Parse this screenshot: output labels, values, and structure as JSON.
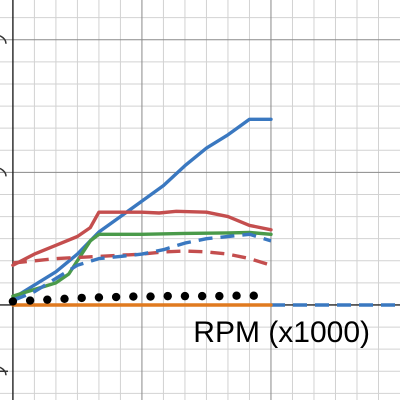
{
  "app": {
    "title": ""
  },
  "chart_data": {
    "type": "line",
    "title": "",
    "xlabel": "RPM (x1000)",
    "ylabel": "",
    "xlim": [
      -0.3,
      9.0
    ],
    "ylim": [
      -2.15,
      6.9
    ],
    "grid": true,
    "legend": "none",
    "series": [
      {
        "color": "#3a78c0",
        "style": "solid",
        "points": [
          [
            0,
            0.15
          ],
          [
            0.5,
            0.45
          ],
          [
            1.0,
            0.75
          ],
          [
            1.5,
            1.15
          ],
          [
            2.0,
            1.65
          ],
          [
            2.5,
            2.0
          ],
          [
            3.0,
            2.35
          ],
          [
            3.5,
            2.7
          ],
          [
            4.0,
            3.15
          ],
          [
            4.5,
            3.55
          ],
          [
            5.0,
            3.85
          ],
          [
            5.5,
            4.2
          ],
          [
            6.0,
            4.2
          ]
        ]
      },
      {
        "color": "#c44e4e",
        "style": "solid",
        "points": [
          [
            0,
            0.9
          ],
          [
            0.5,
            1.15
          ],
          [
            1.0,
            1.35
          ],
          [
            1.5,
            1.55
          ],
          [
            1.8,
            1.75
          ],
          [
            2.0,
            2.1
          ],
          [
            2.2,
            2.1
          ],
          [
            3.0,
            2.1
          ],
          [
            3.4,
            2.08
          ],
          [
            3.8,
            2.12
          ],
          [
            4.5,
            2.1
          ],
          [
            5.0,
            2.0
          ],
          [
            5.5,
            1.8
          ],
          [
            6.0,
            1.7
          ]
        ]
      },
      {
        "color": "#4a9a4a",
        "style": "solid",
        "points": [
          [
            0,
            0.2
          ],
          [
            0.5,
            0.35
          ],
          [
            1.0,
            0.5
          ],
          [
            1.3,
            0.7
          ],
          [
            1.6,
            1.15
          ],
          [
            1.8,
            1.45
          ],
          [
            2.0,
            1.6
          ],
          [
            3.0,
            1.6
          ],
          [
            4.0,
            1.62
          ],
          [
            5.0,
            1.63
          ],
          [
            5.5,
            1.64
          ],
          [
            6.0,
            1.6
          ]
        ]
      },
      {
        "color": "#c44e4e",
        "style": "dashed",
        "points": [
          [
            0,
            0.95
          ],
          [
            0.5,
            1.0
          ],
          [
            1.0,
            1.05
          ],
          [
            2.0,
            1.1
          ],
          [
            3.0,
            1.15
          ],
          [
            3.5,
            1.2
          ],
          [
            4.0,
            1.22
          ],
          [
            4.5,
            1.2
          ],
          [
            5.0,
            1.15
          ],
          [
            5.5,
            1.05
          ],
          [
            6.0,
            0.9
          ]
        ]
      },
      {
        "color": "#3a78c0",
        "style": "dashed",
        "points": [
          [
            0,
            0.1
          ],
          [
            0.5,
            0.3
          ],
          [
            1.0,
            0.6
          ],
          [
            1.5,
            0.9
          ],
          [
            2.0,
            1.05
          ],
          [
            2.5,
            1.1
          ],
          [
            3.0,
            1.15
          ],
          [
            3.5,
            1.25
          ],
          [
            4.0,
            1.4
          ],
          [
            4.5,
            1.5
          ],
          [
            5.0,
            1.55
          ],
          [
            5.5,
            1.6
          ],
          [
            6.0,
            1.45
          ]
        ]
      },
      {
        "color": "#3a78c0",
        "style": "dashed",
        "points": [
          [
            6.0,
            0.0
          ],
          [
            9.0,
            0.0
          ]
        ]
      },
      {
        "color": "#e07a1f",
        "style": "solid",
        "points": [
          [
            0,
            0.0
          ],
          [
            6.0,
            0.0
          ]
        ]
      },
      {
        "color": "#000000",
        "style": "dotted",
        "points": [
          [
            0.0,
            0.08
          ],
          [
            0.4,
            0.1
          ],
          [
            0.8,
            0.12
          ],
          [
            1.2,
            0.14
          ],
          [
            1.6,
            0.16
          ],
          [
            2.0,
            0.17
          ],
          [
            2.4,
            0.18
          ],
          [
            2.8,
            0.19
          ],
          [
            3.2,
            0.19
          ],
          [
            3.6,
            0.2
          ],
          [
            4.0,
            0.2
          ],
          [
            4.4,
            0.2
          ],
          [
            4.8,
            0.2
          ],
          [
            5.2,
            0.21
          ],
          [
            5.6,
            0.21
          ]
        ]
      }
    ]
  }
}
